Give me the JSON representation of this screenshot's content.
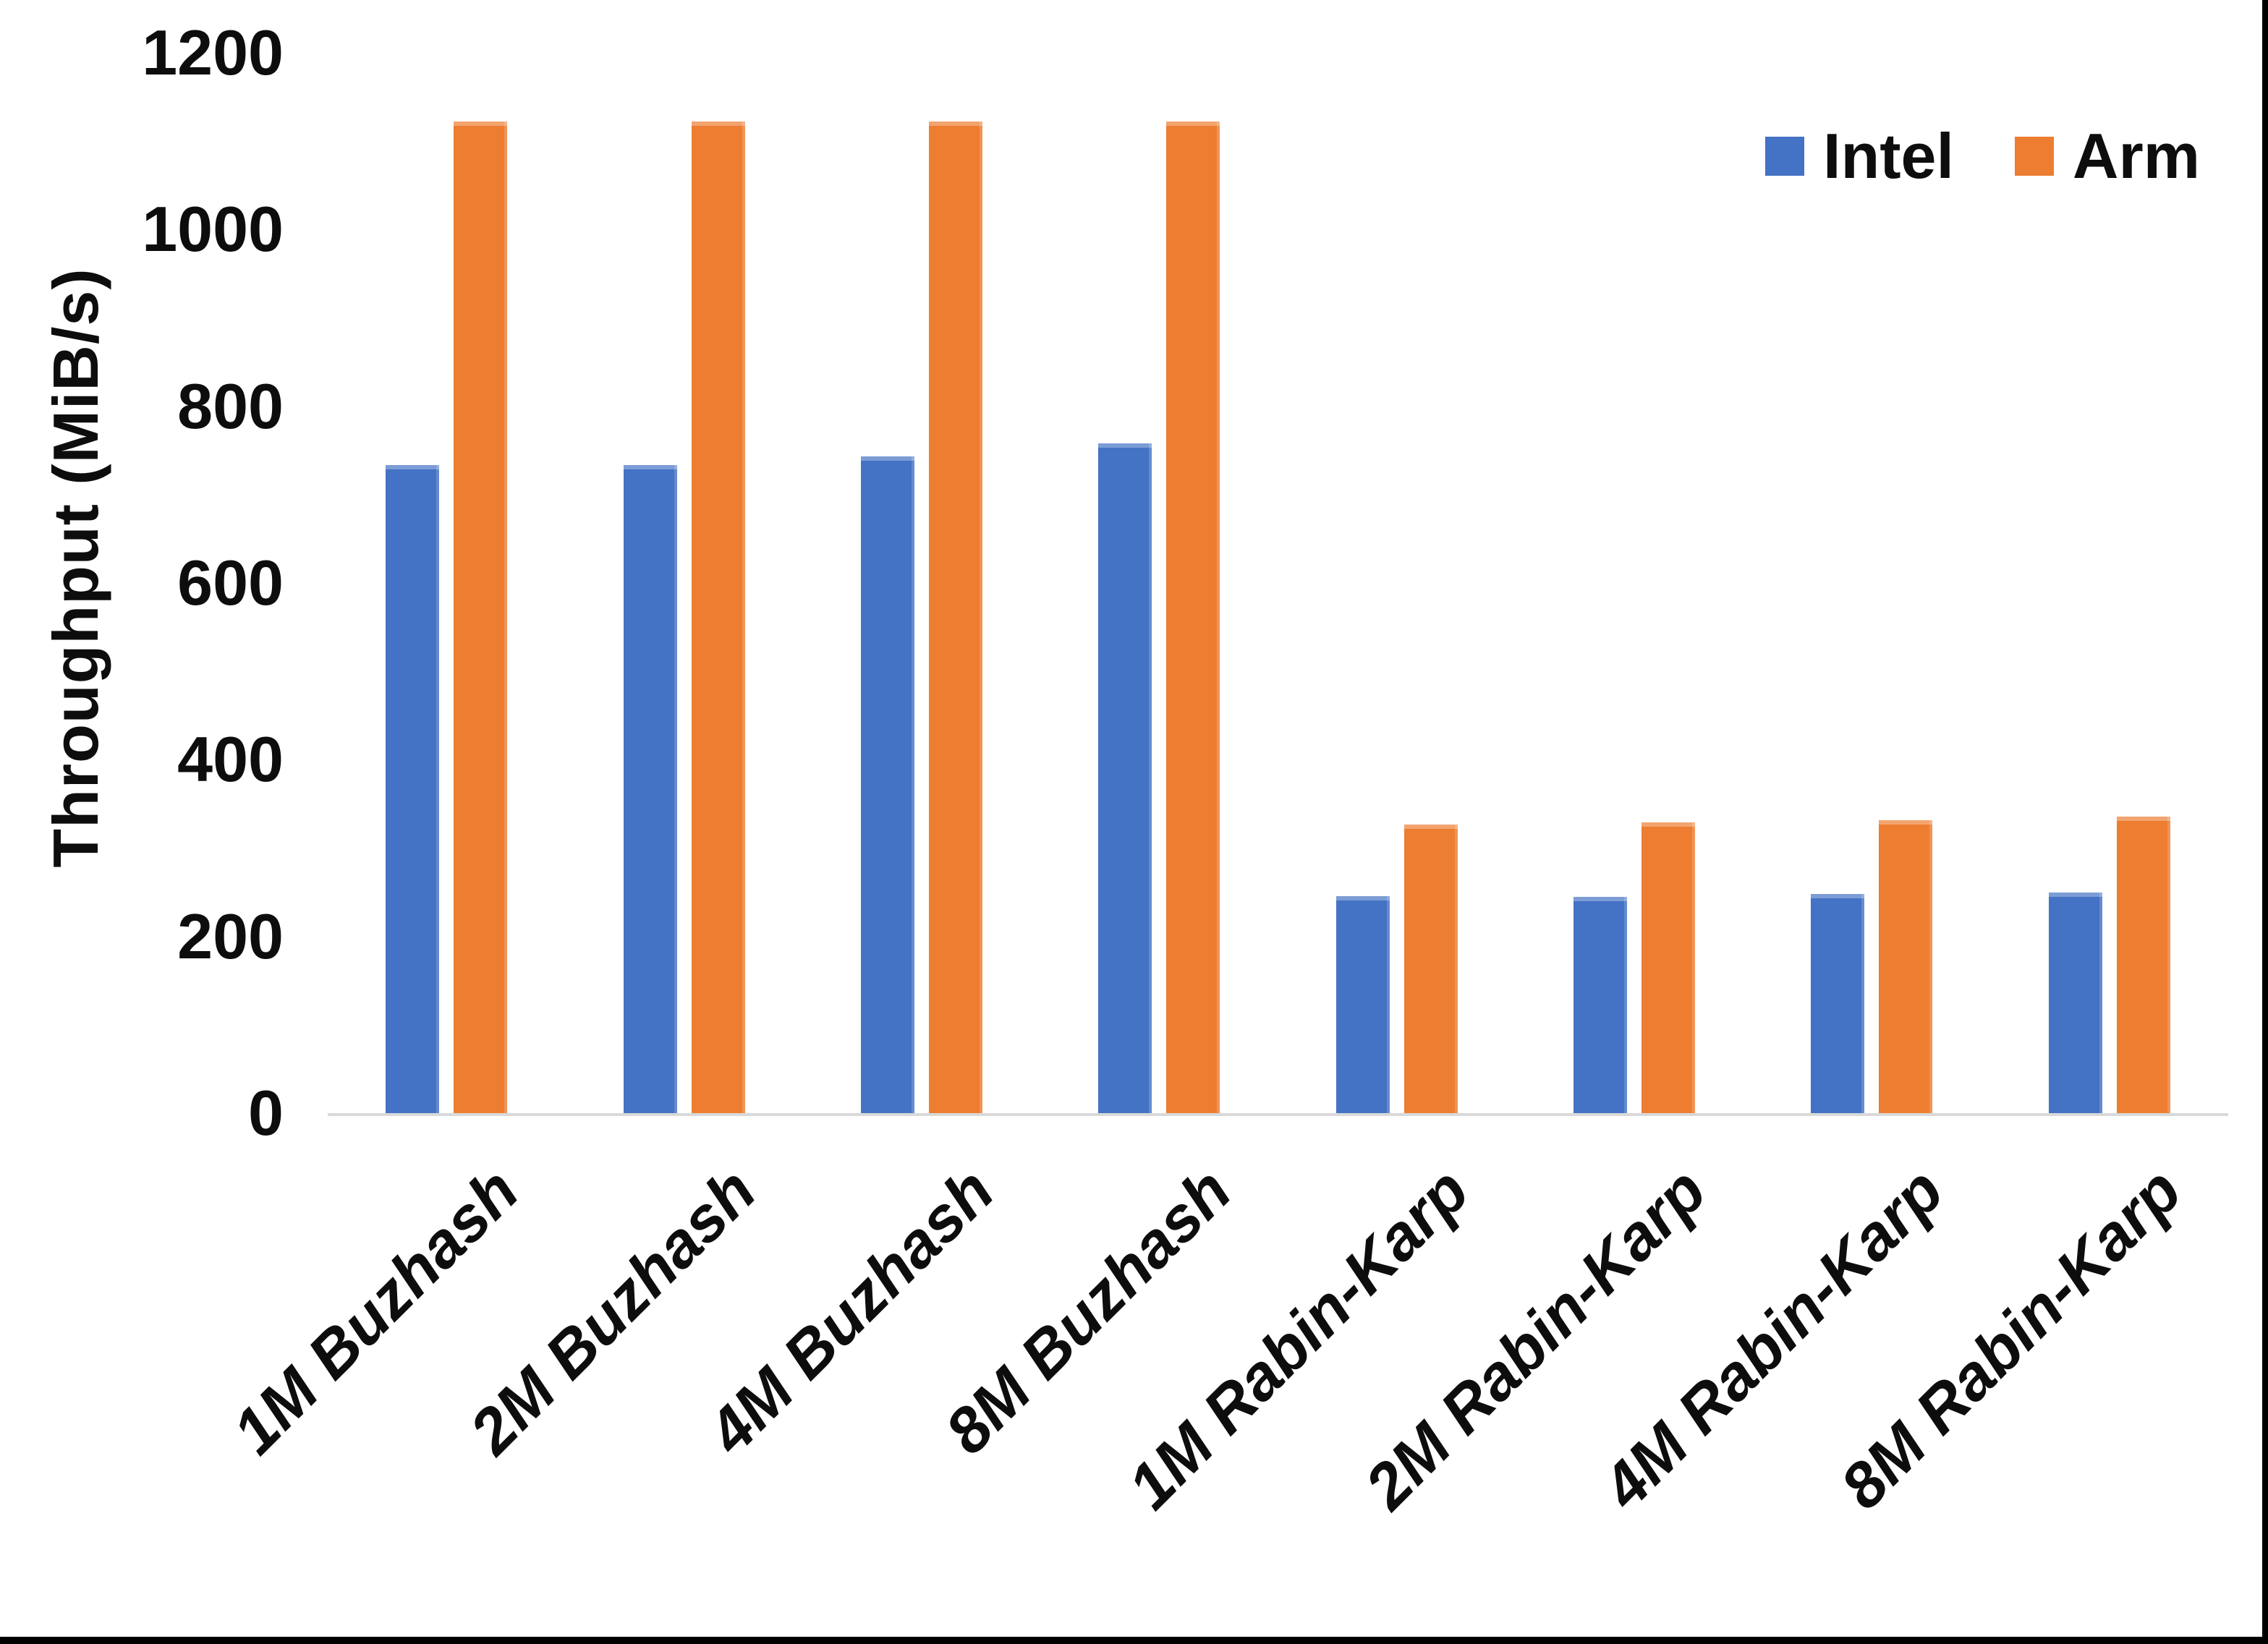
{
  "page": {
    "background_color": "#FFFFFF",
    "edge_border_color": "#000000"
  },
  "chart_data": {
    "type": "bar",
    "title": "",
    "xlabel": "",
    "ylabel": "Throughput (MiB/s)",
    "ylim": [
      0,
      1200
    ],
    "yticks": [
      0,
      200,
      400,
      600,
      800,
      1000,
      1200
    ],
    "grid": false,
    "legend_position": "top-right",
    "axis_line_color": "#D9D9D9",
    "text_color": "#0D0D0D",
    "categories": [
      "1M Buzhash",
      "2M Buzhash",
      "4M Buzhash",
      "8M Buzhash",
      "1M Rabin-Karp",
      "2M Rabin-Karp",
      "4M Rabin-Karp",
      "8M Rabin-Karp"
    ],
    "series": [
      {
        "name": "Intel",
        "color": "#4472C4",
        "values": [
          735,
          735,
          745,
          760,
          247,
          246,
          250,
          251
        ]
      },
      {
        "name": "Arm",
        "color": "#ED7D31",
        "values": [
          1124,
          1124,
          1124,
          1124,
          328,
          331,
          333,
          337
        ]
      }
    ]
  }
}
